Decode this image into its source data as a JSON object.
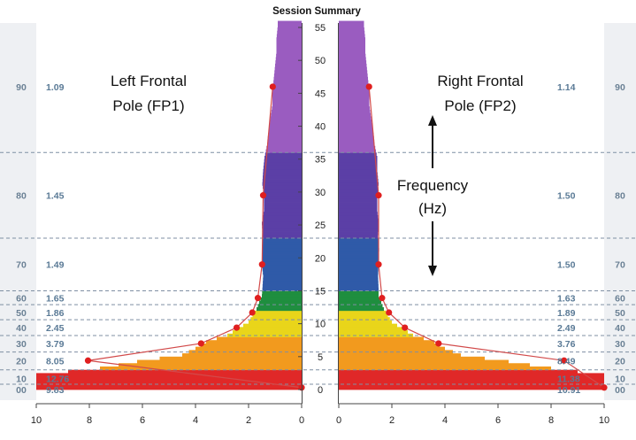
{
  "title": "Session Summary",
  "annotations": {
    "left_line1": "Left Frontal",
    "left_line2": "Pole (FP1)",
    "right_line1": "Right Frontal",
    "right_line2": "Pole (FP2)",
    "freq_line1": "Frequency",
    "freq_line2": "(Hz)"
  },
  "chart_data": {
    "type": "bar",
    "orientation": "horizontal-mirrored",
    "title": "Session Summary",
    "ylim": [
      0,
      56
    ],
    "y_ticks": [
      0,
      5,
      10,
      15,
      20,
      25,
      30,
      35,
      40,
      45,
      50,
      55
    ],
    "x_ticks_left": [
      10,
      8,
      6,
      4,
      2,
      0
    ],
    "x_ticks_right": [
      0,
      2,
      4,
      6,
      8,
      10
    ],
    "xlim": [
      0,
      10
    ],
    "color_bands": [
      {
        "from": 0,
        "to": 3,
        "color": "#e02828"
      },
      {
        "from": 3,
        "to": 8,
        "color": "#f29a1e"
      },
      {
        "from": 8,
        "to": 12,
        "color": "#e9d51a"
      },
      {
        "from": 12,
        "to": 15,
        "color": "#1f8e3f"
      },
      {
        "from": 15,
        "to": 23,
        "color": "#2f5aa8"
      },
      {
        "from": 23,
        "to": 36,
        "color": "#5b3fa6"
      },
      {
        "from": 36,
        "to": 56,
        "color": "#9a5cc0"
      }
    ],
    "percentile_lines": [
      0.8,
      3,
      5.7,
      8.2,
      10.6,
      12.9,
      15,
      23,
      36
    ],
    "left_pct_labels": [
      {
        "label": "00",
        "y": 0
      },
      {
        "label": "10",
        "y": 1.7
      },
      {
        "label": "20",
        "y": 4.4
      },
      {
        "label": "30",
        "y": 7.0
      },
      {
        "label": "40",
        "y": 9.4
      },
      {
        "label": "50",
        "y": 11.7
      },
      {
        "label": "60",
        "y": 13.9
      },
      {
        "label": "70",
        "y": 19
      },
      {
        "label": "80",
        "y": 29.5
      },
      {
        "label": "90",
        "y": 46
      }
    ],
    "right_pct_labels": [
      {
        "label": "00",
        "y": 0
      },
      {
        "label": "10",
        "y": 1.7
      },
      {
        "label": "20",
        "y": 4.4
      },
      {
        "label": "30",
        "y": 7.0
      },
      {
        "label": "40",
        "y": 9.4
      },
      {
        "label": "50",
        "y": 11.7
      },
      {
        "label": "60",
        "y": 13.9
      },
      {
        "label": "70",
        "y": 19
      },
      {
        "label": "80",
        "y": 29.5
      },
      {
        "label": "90",
        "y": 46
      }
    ],
    "left_ratios": [
      {
        "value": "9.83",
        "y": 0
      },
      {
        "value": "12.76",
        "y": 1.7
      },
      {
        "value": "8.05",
        "y": 4.4
      },
      {
        "value": "3.79",
        "y": 7.0
      },
      {
        "value": "2.45",
        "y": 9.4
      },
      {
        "value": "1.86",
        "y": 11.7
      },
      {
        "value": "1.65",
        "y": 13.9
      },
      {
        "value": "1.49",
        "y": 19
      },
      {
        "value": "1.45",
        "y": 29.5
      },
      {
        "value": "1.09",
        "y": 46
      }
    ],
    "right_ratios": [
      {
        "value": "10.91",
        "y": 0
      },
      {
        "value": "11.38",
        "y": 1.7
      },
      {
        "value": "8.49",
        "y": 4.4
      },
      {
        "value": "3.76",
        "y": 7.0
      },
      {
        "value": "2.49",
        "y": 9.4
      },
      {
        "value": "1.89",
        "y": 11.7
      },
      {
        "value": "1.63",
        "y": 13.9
      },
      {
        "value": "1.50",
        "y": 19
      },
      {
        "value": "1.50",
        "y": 29.5
      },
      {
        "value": "1.14",
        "y": 46
      }
    ],
    "left_profile": [
      {
        "y": 0,
        "x": 10
      },
      {
        "y": 1,
        "x": 10
      },
      {
        "y": 2,
        "x": 10
      },
      {
        "y": 3,
        "x": 7.6
      },
      {
        "y": 4,
        "x": 6.2
      },
      {
        "y": 5,
        "x": 4.5
      },
      {
        "y": 6,
        "x": 4.0
      },
      {
        "y": 7,
        "x": 3.6
      },
      {
        "y": 8,
        "x": 2.8
      },
      {
        "y": 9,
        "x": 2.4
      },
      {
        "y": 10,
        "x": 2.0
      },
      {
        "y": 11,
        "x": 1.85
      },
      {
        "y": 12,
        "x": 1.7
      },
      {
        "y": 13,
        "x": 1.6
      },
      {
        "y": 14,
        "x": 1.5
      },
      {
        "y": 15,
        "x": 1.48
      },
      {
        "y": 17,
        "x": 1.45
      },
      {
        "y": 19,
        "x": 1.5
      },
      {
        "y": 21,
        "x": 1.5
      },
      {
        "y": 23,
        "x": 1.47
      },
      {
        "y": 25,
        "x": 1.5
      },
      {
        "y": 27,
        "x": 1.42
      },
      {
        "y": 29,
        "x": 1.42
      },
      {
        "y": 31,
        "x": 1.48
      },
      {
        "y": 33,
        "x": 1.45
      },
      {
        "y": 35,
        "x": 1.4
      },
      {
        "y": 37,
        "x": 1.3
      },
      {
        "y": 39,
        "x": 1.25
      },
      {
        "y": 41,
        "x": 1.18
      },
      {
        "y": 43,
        "x": 1.1
      },
      {
        "y": 45,
        "x": 1.1
      },
      {
        "y": 47,
        "x": 1.05
      },
      {
        "y": 49,
        "x": 1.0
      },
      {
        "y": 51,
        "x": 0.95
      },
      {
        "y": 53,
        "x": 0.95
      },
      {
        "y": 55,
        "x": 0.9
      }
    ],
    "right_profile": [
      {
        "y": 0,
        "x": 10
      },
      {
        "y": 1,
        "x": 10
      },
      {
        "y": 2,
        "x": 10
      },
      {
        "y": 3,
        "x": 8.0
      },
      {
        "y": 4,
        "x": 6.4
      },
      {
        "y": 5,
        "x": 4.6
      },
      {
        "y": 6,
        "x": 4.0
      },
      {
        "y": 7,
        "x": 3.6
      },
      {
        "y": 8,
        "x": 2.8
      },
      {
        "y": 9,
        "x": 2.4
      },
      {
        "y": 10,
        "x": 2.0
      },
      {
        "y": 11,
        "x": 1.85
      },
      {
        "y": 12,
        "x": 1.7
      },
      {
        "y": 13,
        "x": 1.6
      },
      {
        "y": 14,
        "x": 1.5
      },
      {
        "y": 15,
        "x": 1.5
      },
      {
        "y": 17,
        "x": 1.48
      },
      {
        "y": 19,
        "x": 1.5
      },
      {
        "y": 21,
        "x": 1.52
      },
      {
        "y": 23,
        "x": 1.47
      },
      {
        "y": 25,
        "x": 1.5
      },
      {
        "y": 27,
        "x": 1.45
      },
      {
        "y": 29,
        "x": 1.45
      },
      {
        "y": 31,
        "x": 1.5
      },
      {
        "y": 33,
        "x": 1.45
      },
      {
        "y": 35,
        "x": 1.45
      },
      {
        "y": 37,
        "x": 1.35
      },
      {
        "y": 39,
        "x": 1.3
      },
      {
        "y": 41,
        "x": 1.22
      },
      {
        "y": 43,
        "x": 1.15
      },
      {
        "y": 45,
        "x": 1.15
      },
      {
        "y": 47,
        "x": 1.1
      },
      {
        "y": 49,
        "x": 1.05
      },
      {
        "y": 51,
        "x": 1.0
      },
      {
        "y": 53,
        "x": 1.0
      },
      {
        "y": 55,
        "x": 0.95
      }
    ],
    "left_points": [
      {
        "x": 0.0,
        "y": 0.3
      },
      {
        "x": 8.05,
        "y": 4.4
      },
      {
        "x": 3.79,
        "y": 7.0
      },
      {
        "x": 2.45,
        "y": 9.4
      },
      {
        "x": 1.86,
        "y": 11.7
      },
      {
        "x": 1.65,
        "y": 13.9
      },
      {
        "x": 1.49,
        "y": 19
      },
      {
        "x": 1.45,
        "y": 29.5
      },
      {
        "x": 1.09,
        "y": 46
      }
    ],
    "right_points": [
      {
        "x": 10.0,
        "y": 0.3
      },
      {
        "x": 8.49,
        "y": 4.4
      },
      {
        "x": 3.76,
        "y": 7.0
      },
      {
        "x": 2.49,
        "y": 9.4
      },
      {
        "x": 1.89,
        "y": 11.7
      },
      {
        "x": 1.63,
        "y": 13.9
      },
      {
        "x": 1.5,
        "y": 19
      },
      {
        "x": 1.5,
        "y": 29.5
      },
      {
        "x": 1.14,
        "y": 46
      }
    ],
    "point_color": "#e01f1f",
    "line_color": "#d24a4a"
  }
}
